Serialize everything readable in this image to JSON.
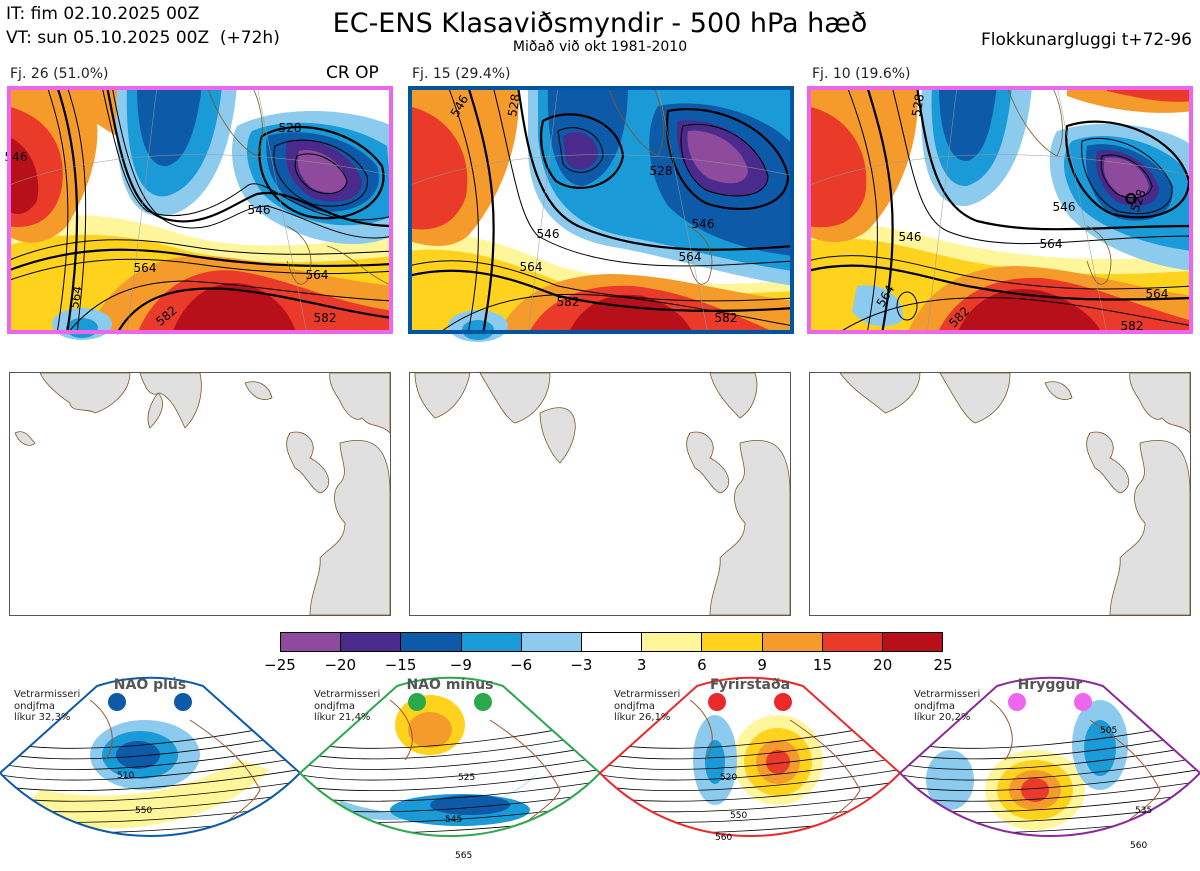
{
  "header": {
    "it_line": "IT: fim 02.10.2025 00Z",
    "vt_line": "VT: sun 05.10.2025 00Z  (+72h)",
    "title": "EC-ENS Klasaviðsmyndir - 500 hPa hæð",
    "subtitle": "Miðað við okt 1981-2010",
    "window": "Flokkunargluggi t+72-96"
  },
  "clusters": [
    {
      "label": "Fj. 26 (51.0%)",
      "marker": "CR OP",
      "border_color": "#ee66ee",
      "contour_labels": [
        "528",
        "546",
        "546",
        "564",
        "564",
        "564",
        "582",
        "582"
      ]
    },
    {
      "label": "Fj. 15 (29.4%)",
      "marker": "",
      "border_color": "#0055a0",
      "contour_labels": [
        "546",
        "528",
        "528",
        "546",
        "546",
        "564",
        "564",
        "582",
        "582"
      ]
    },
    {
      "label": "Fj. 10 (19.6%)",
      "marker": "",
      "border_color": "#ee66ee",
      "contour_labels": [
        "528",
        "546",
        "546",
        "564",
        "564",
        "564",
        "582",
        "582",
        "528"
      ]
    }
  ],
  "colorbar": {
    "ticks": [
      "−25",
      "−20",
      "−15",
      "−9",
      "−6",
      "−3",
      "3",
      "6",
      "9",
      "15",
      "20",
      "25"
    ],
    "colors": [
      "#8e4a9c",
      "#4a2a8a",
      "#0d5aa8",
      "#1a9ad6",
      "#8ccbee",
      "#ffffff",
      "#fff59a",
      "#ffd21e",
      "#f59b2c",
      "#ea3a2a",
      "#b8101a"
    ]
  },
  "regimes": [
    {
      "name": "NAO plús",
      "info": "Vetrarmisseri\nondjfma\nlíkur 32,3%",
      "edge_color": "#0d5aa8",
      "dot_color": "#0d5aa8",
      "contours": [
        "510",
        "550"
      ]
    },
    {
      "name": "NAO mínus",
      "info": "Vetrarmisseri\nondjfma\nlíkur 21,4%",
      "edge_color": "#2aa84a",
      "dot_color": "#2aa84a",
      "contours": [
        "525",
        "545",
        "565"
      ]
    },
    {
      "name": "Fyrirstaða",
      "info": "Vetrarmisseri\nondjfma\nlíkur 26,1%",
      "edge_color": "#ea2a2a",
      "dot_color": "#ea2a2a",
      "contours": [
        "520",
        "550",
        "560"
      ]
    },
    {
      "name": "Hryggur",
      "info": "Vetrarmisseri\nondjfma\nlíkur 20,2%",
      "edge_color": "#8a2a9a",
      "dot_color": "#ee66ee",
      "contours": [
        "505",
        "535",
        "560"
      ]
    }
  ]
}
